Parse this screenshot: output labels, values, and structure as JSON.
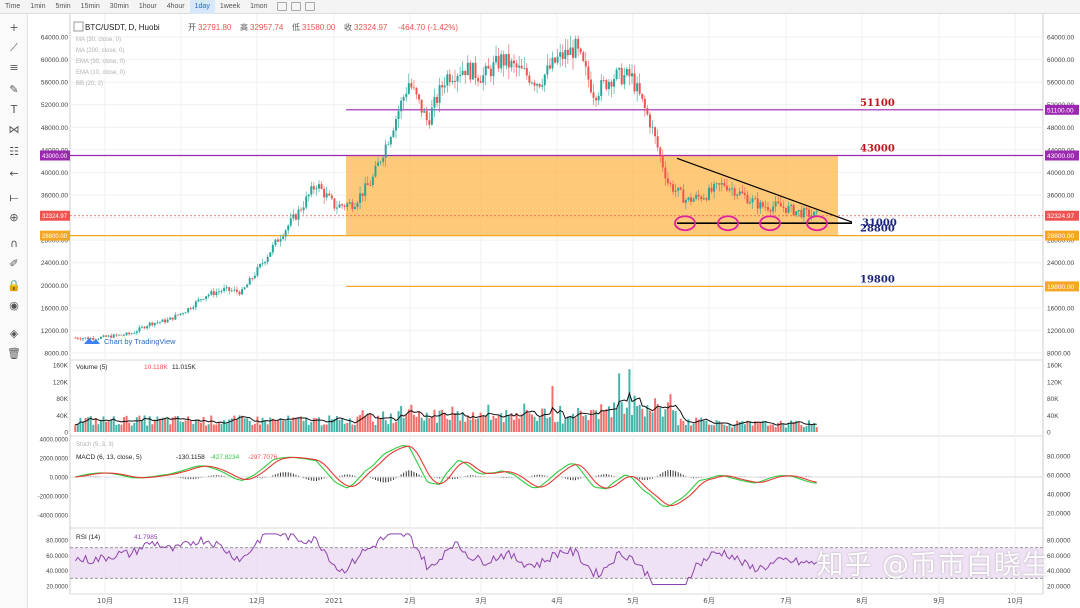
{
  "toolbar": {
    "timeframes": [
      "Time",
      "1min",
      "5min",
      "15min",
      "30min",
      "1hour",
      "4hour",
      "1day",
      "1week",
      "1mon"
    ],
    "active_timeframe": "1day"
  },
  "sidebar": {
    "tools": [
      {
        "name": "crosshair-icon",
        "glyph": "+"
      },
      {
        "name": "trend-line-icon",
        "glyph": "⟋"
      },
      {
        "name": "horizontal-lines-icon",
        "glyph": "≡"
      },
      {
        "name": "brush-icon",
        "glyph": "✎"
      },
      {
        "name": "text-tool-icon",
        "glyph": "T"
      },
      {
        "name": "pattern-icon",
        "glyph": "⋈"
      },
      {
        "name": "fib-icon",
        "glyph": "☷"
      },
      {
        "name": "back-arrow-icon",
        "glyph": "←"
      },
      {
        "name": "ruler-icon",
        "glyph": "⟝"
      },
      {
        "name": "zoom-icon",
        "glyph": "⊕"
      },
      {
        "name": "magnet-icon",
        "glyph": "∩"
      },
      {
        "name": "lock-drawing-icon",
        "glyph": "✐"
      },
      {
        "name": "lock-icon",
        "glyph": "🔒"
      },
      {
        "name": "eye-icon",
        "glyph": "◉"
      },
      {
        "name": "layers-icon",
        "glyph": "◈"
      },
      {
        "name": "trash-icon",
        "glyph": "🗑"
      }
    ]
  },
  "header": {
    "symbol": "BTC/USDT, D, Huobi",
    "open_label": "开",
    "open": "32791.80",
    "high_label": "高",
    "high": "32957.74",
    "low_label": "低",
    "low": "31580.00",
    "close_label": "收",
    "close": "32324.97",
    "change": "-464.70 (-1.42%)"
  },
  "indicators": [
    "MA (30, close, 0)",
    "MA (200, close, 0)",
    "EMA (30, close, 0)",
    "EMA (10, close, 0)",
    "BB (20, 2)"
  ],
  "attribution": "Chart by TradingView",
  "watermark": "知乎 @币市白晓生",
  "colors": {
    "up": "#26a69a",
    "down": "#ef5350",
    "zone": "#ffb74d",
    "purple_line": "#9c27b0",
    "orange_line": "#f5a623",
    "label_red": "#c0141c",
    "label_blue": "#1a237e",
    "macd": "#2ecc40",
    "signal": "#e53935",
    "rsi": "#8e44ad",
    "rsi_band": "#e8d5f0"
  },
  "chart_data": [
    {
      "type": "candlestick",
      "title": "BTC/USDT, D, Huobi",
      "ylim": [
        7000,
        68000
      ],
      "y_ticks": [
        8000,
        12000,
        16000,
        20000,
        24000,
        28000,
        32000,
        36000,
        40000,
        44000,
        48000,
        52000,
        56000,
        60000,
        64000
      ],
      "y_tick_labels": [
        "8000.00",
        "12000.00",
        "16000.00",
        "20000.00",
        "24000.00",
        "28000.00",
        "32000.00",
        "36000.00",
        "40000.00",
        "44000.00",
        "48000.00",
        "52000.00",
        "56000.00",
        "60000.00",
        "64000.00"
      ],
      "x_ticks": [
        "10月",
        "11月",
        "12月",
        "2021",
        "2月",
        "3月",
        "4月",
        "5月",
        "6月",
        "7月",
        "8月",
        "9月",
        "10月"
      ],
      "close_weekly": [
        10700,
        10600,
        11000,
        11400,
        13200,
        13800,
        15600,
        18200,
        19200,
        18800,
        23500,
        28500,
        32800,
        38000,
        34000,
        34500,
        38500,
        47000,
        56000,
        49000,
        57000,
        58500,
        57000,
        60000,
        58000,
        56000,
        60000,
        62000,
        54000,
        57000,
        57000,
        49000,
        38000,
        35000,
        36000,
        38000,
        36000,
        34000,
        34000,
        33000,
        32300
      ],
      "levels": [
        {
          "price": 51100,
          "label": "51100",
          "tag": "51100.00",
          "color": "#9c27b0"
        },
        {
          "price": 43000,
          "label": "43000",
          "tag": "43000.00",
          "color": "#9c27b0"
        },
        {
          "price": 31000,
          "label": "31000",
          "tag": "",
          "color": "#000000"
        },
        {
          "price": 28800,
          "label": "28800",
          "tag": "28800.00",
          "color": "#f5a623"
        },
        {
          "price": 19800,
          "label": "19800",
          "tag": "19800.00",
          "color": "#f5a623"
        }
      ],
      "current_price_tag": "32324.97",
      "support_touches": 4
    },
    {
      "type": "bar",
      "title": "Volume (5)",
      "values_text": [
        "10.118K",
        "11.015K"
      ],
      "y_tick_labels": [
        "0",
        "40K",
        "80K",
        "120K",
        "160K"
      ]
    },
    {
      "type": "line",
      "title": "MACD (6, 13, close, 5)",
      "values_text": [
        "-130.1158",
        "-427.8234",
        "-297.7076"
      ],
      "overlay_title": "Stoch (9, 3, 3)",
      "left_tick_labels": [
        "4000.0000",
        "2000.0000",
        "0.0000",
        "-2000.0000",
        "-4000.0000"
      ],
      "right_tick_labels": [
        "80.0000",
        "60.0000",
        "40.0000",
        "20.0000"
      ]
    },
    {
      "type": "line",
      "title": "RSI (14)",
      "values_text": [
        "41.7985"
      ],
      "band": [
        30,
        70
      ],
      "y_tick_labels": [
        "80.0000",
        "60.0000",
        "40.0000",
        "20.0000"
      ]
    }
  ]
}
